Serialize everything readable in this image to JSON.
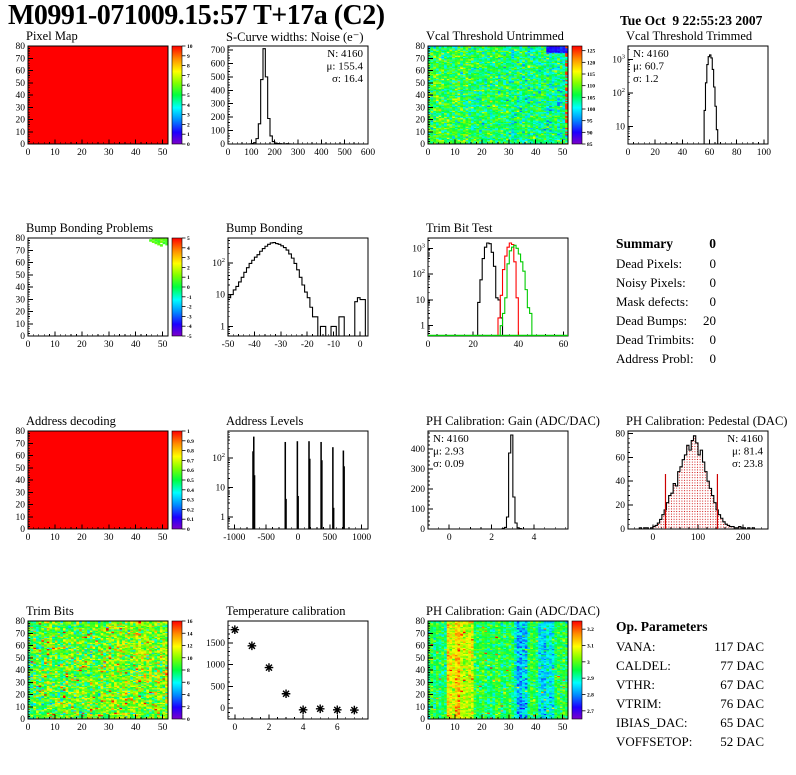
{
  "header": {
    "title": "M0991-071009.15:57 T+17a (C2)",
    "timestamp": "Tue Oct  9 22:55:23 2007"
  },
  "summary": {
    "heading": "Summary",
    "heading_value": "0",
    "rows": [
      {
        "label": "Dead Pixels:",
        "value": "0"
      },
      {
        "label": "Noisy Pixels:",
        "value": "0"
      },
      {
        "label": "Mask defects:",
        "value": "0"
      },
      {
        "label": "Dead Bumps:",
        "value": "20"
      },
      {
        "label": "Dead Trimbits:",
        "value": "0"
      },
      {
        "label": "Address Probl:",
        "value": "0"
      }
    ]
  },
  "op_parameters": {
    "heading": "Op. Parameters",
    "rows": [
      {
        "label": "VANA:",
        "value": "117 DAC"
      },
      {
        "label": "CALDEL:",
        "value": "77 DAC"
      },
      {
        "label": "VTHR:",
        "value": "67 DAC"
      },
      {
        "label": "VTRIM:",
        "value": "76 DAC"
      },
      {
        "label": "IBIAS_DAC:",
        "value": "65 DAC"
      },
      {
        "label": "VOFFSETOP:",
        "value": "52 DAC"
      }
    ]
  },
  "colors": {
    "accent_red": "#ff0000",
    "accent_green": "#00cc00",
    "stats_red": "#cc0000",
    "black": "#000000"
  },
  "chart_data": [
    {
      "id": "pixel-map",
      "title": "Pixel Map",
      "type": "heatmap",
      "xlim": [
        0,
        52
      ],
      "ylim": [
        0,
        80
      ],
      "x_ticks": [
        0,
        10,
        20,
        30,
        40,
        50
      ],
      "y_ticks": [
        0,
        10,
        20,
        30,
        40,
        50,
        60,
        70,
        80
      ],
      "heatmap": {
        "mode": "solid",
        "value": 10,
        "seed": 1
      },
      "colorbar": {
        "min": 0,
        "max": 10,
        "ticks": [
          0,
          1,
          2,
          3,
          4,
          5,
          6,
          7,
          8,
          9,
          10
        ]
      }
    },
    {
      "id": "scurve-noise",
      "title": "S-Curve widths: Noise (e⁻)",
      "type": "hist",
      "yscale": "lin",
      "xlim": [
        0,
        600
      ],
      "x_ticks": [
        0,
        100,
        200,
        300,
        400,
        500,
        600
      ],
      "ylim": [
        0,
        730
      ],
      "y_ticks": [
        0,
        100,
        200,
        300,
        400,
        500,
        600,
        700
      ],
      "series": [
        {
          "color": "#000000",
          "bin_start": 0,
          "bin_width": 10,
          "counts": [
            0,
            0,
            0,
            0,
            0,
            0,
            0,
            0,
            0,
            1,
            3,
            10,
            40,
            150,
            480,
            710,
            500,
            190,
            60,
            18,
            7,
            3,
            2,
            1,
            1,
            2,
            1
          ]
        }
      ],
      "stats": {
        "pos": "tr",
        "lines": [
          {
            "text": "N: 4160",
            "color": "#000000"
          },
          {
            "text": "μ: 155.4",
            "color": "#000000"
          },
          {
            "text": "σ: 16.4",
            "color": "#000000"
          }
        ]
      }
    },
    {
      "id": "vcal-threshold-untrimmed",
      "title": "Vcal Threshold Untrimmed",
      "type": "heatmap",
      "xlim": [
        0,
        52
      ],
      "ylim": [
        0,
        80
      ],
      "x_ticks": [
        0,
        10,
        20,
        30,
        40,
        50
      ],
      "y_ticks": [
        0,
        10,
        20,
        30,
        40,
        50,
        60,
        70,
        80
      ],
      "heatmap": {
        "mode": "noise",
        "seed": 11,
        "mean": 105.5,
        "sigma": 4.2,
        "col_slope": -0.07,
        "col_jitter": 1.2,
        "patches": [
          {
            "x0": 44,
            "x1": 52,
            "y0": 75,
            "y1": 80,
            "value": 91,
            "jitter": 2
          }
        ],
        "edge": {
          "col": 51,
          "p": 0.45,
          "value": 125
        }
      },
      "colorbar": {
        "min": 85,
        "max": 127,
        "ticks": [
          85,
          90,
          95,
          100,
          105,
          110,
          115,
          120,
          125
        ]
      }
    },
    {
      "id": "vcal-threshold-trimmed",
      "title": "Vcal Threshold Trimmed",
      "type": "hist",
      "yscale": "log",
      "xlim": [
        0,
        103
      ],
      "x_ticks": [
        0,
        20,
        40,
        60,
        80,
        100
      ],
      "ylog": {
        "min": 3,
        "max": 2500,
        "decades": [
          10,
          100,
          1000
        ]
      },
      "series": [
        {
          "color": "#000000",
          "bin_start": 55,
          "bin_width": 1,
          "counts": [
            3,
            30,
            200,
            700,
            1200,
            1350,
            1100,
            500,
            150,
            40,
            8
          ]
        }
      ],
      "stats": {
        "pos": "tl",
        "lines": [
          {
            "text": "N: 4160",
            "color": "#000000"
          },
          {
            "text": "μ: 60.7",
            "color": "#000000"
          },
          {
            "text": "σ:  1.2",
            "color": "#000000"
          }
        ]
      }
    },
    {
      "id": "bump-bonding-problems",
      "title": "Bump Bonding Problems",
      "type": "heatmap",
      "xlim": [
        0,
        52
      ],
      "ylim": [
        0,
        80
      ],
      "x_ticks": [
        0,
        10,
        20,
        30,
        40,
        50
      ],
      "y_ticks": [
        0,
        10,
        20,
        30,
        40,
        50,
        60,
        70,
        80
      ],
      "heatmap": {
        "mode": "sparse",
        "seed": 5,
        "dots": [
          [
            46,
            79,
            0.8
          ],
          [
            47,
            79,
            1.2
          ],
          [
            48,
            79,
            0.6
          ],
          [
            49,
            79,
            1.0
          ],
          [
            50,
            79,
            0.9
          ],
          [
            51,
            79,
            1.1
          ],
          [
            45,
            78,
            0.7
          ],
          [
            47,
            78,
            0.5
          ],
          [
            48,
            78,
            1.0
          ],
          [
            50,
            78,
            0.8
          ],
          [
            51,
            78,
            0.6
          ],
          [
            46,
            77,
            0.9
          ],
          [
            48,
            77,
            0.4
          ],
          [
            49,
            77,
            1.1
          ],
          [
            51,
            77,
            0.7
          ],
          [
            47,
            76,
            0.8
          ],
          [
            50,
            76,
            0.5
          ],
          [
            48,
            75,
            0.9
          ],
          [
            51,
            75,
            0.6
          ],
          [
            49,
            74,
            0.8
          ]
        ]
      },
      "colorbar": {
        "min": -5,
        "max": 5,
        "ticks": [
          -5,
          -4,
          -3,
          -2,
          -1,
          0,
          1,
          2,
          3,
          4,
          5
        ]
      }
    },
    {
      "id": "bump-bonding",
      "title": "Bump Bonding",
      "type": "hist",
      "yscale": "log",
      "xlim": [
        -50,
        3
      ],
      "x_ticks": [
        -50,
        -40,
        -30,
        -20,
        -10,
        0
      ],
      "ylog": {
        "min": 0.5,
        "max": 600,
        "decades": [
          1,
          10,
          100
        ]
      },
      "series": [
        {
          "color": "#000000",
          "bin_start": -50,
          "bin_width": 1,
          "counts": [
            8,
            10,
            14,
            18,
            25,
            35,
            50,
            70,
            95,
            120,
            150,
            180,
            230,
            280,
            330,
            380,
            420,
            430,
            400,
            380,
            340,
            300,
            250,
            190,
            140,
            95,
            60,
            35,
            20,
            12,
            8,
            4,
            2,
            2,
            0,
            1,
            1,
            0,
            0,
            1,
            1,
            0,
            2,
            2,
            0,
            0,
            0,
            0,
            6,
            8,
            7,
            7,
            0
          ]
        }
      ]
    },
    {
      "id": "trim-bit-test",
      "title": "Trim Bit Test",
      "type": "hist",
      "yscale": "log",
      "xlim": [
        0,
        62
      ],
      "x_ticks": [
        0,
        20,
        40,
        60
      ],
      "ylog": {
        "min": 0.4,
        "max": 2500,
        "decades": [
          1,
          10,
          100,
          1000
        ]
      },
      "series": [
        {
          "color": "#000000",
          "bin_start": 22,
          "bin_width": 1,
          "counts": [
            8,
            60,
            400,
            1100,
            1600,
            1500,
            700,
            200,
            12,
            10,
            2
          ]
        },
        {
          "color": "#ff0000",
          "bin_start": 31,
          "bin_width": 1,
          "counts": [
            2,
            15,
            150,
            500,
            1100,
            1600,
            1400,
            300,
            12
          ]
        },
        {
          "color": "#00cc00",
          "bin_start": 32,
          "bin_width": 1,
          "counts": [
            1,
            3,
            12,
            250,
            800,
            1100,
            1300,
            1000,
            600,
            300,
            130,
            25,
            5,
            3
          ]
        }
      ],
      "baseline_color": "#00cc00"
    },
    {
      "id": "address-decoding",
      "title": "Address decoding",
      "type": "heatmap",
      "xlim": [
        0,
        52
      ],
      "ylim": [
        0,
        80
      ],
      "x_ticks": [
        0,
        10,
        20,
        30,
        40,
        50
      ],
      "y_ticks": [
        0,
        10,
        20,
        30,
        40,
        50,
        60,
        70,
        80
      ],
      "heatmap": {
        "mode": "solid",
        "value": 1,
        "seed": 2
      },
      "colorbar": {
        "min": 0,
        "max": 1,
        "ticks": [
          0,
          0.1,
          0.2,
          0.3,
          0.4,
          0.5,
          0.6,
          0.7,
          0.8,
          0.9,
          1
        ]
      }
    },
    {
      "id": "address-levels",
      "title": "Address Levels",
      "type": "hist",
      "yscale": "log",
      "xlim": [
        -1100,
        1100
      ],
      "x_ticks": [
        -1000,
        -500,
        0,
        500,
        1000
      ],
      "ylog": {
        "min": 0.4,
        "max": 800,
        "decades": [
          1,
          10,
          100
        ]
      },
      "series": [
        {
          "color": "#000000",
          "bars": [
            [
              -712,
              10,
              160
            ],
            [
              -700,
              10,
              500
            ],
            [
              -688,
              10,
              25
            ],
            [
              -205,
              10,
              330
            ],
            [
              -193,
              10,
              4
            ],
            [
              -15,
              10,
              350
            ],
            [
              -3,
              10,
              5
            ],
            [
              168,
              10,
              350
            ],
            [
              180,
              10,
              90
            ],
            [
              358,
              10,
              330
            ],
            [
              370,
              10,
              80
            ],
            [
              543,
              10,
              220
            ],
            [
              555,
              10,
              2
            ],
            [
              708,
              10,
              170
            ],
            [
              720,
              10,
              50
            ]
          ]
        }
      ]
    },
    {
      "id": "ph-calibration-gain-hist",
      "title": "PH Calibration: Gain (ADC/DAC)",
      "type": "hist",
      "yscale": "lin",
      "xlim": [
        -1,
        5.6
      ],
      "x_ticks": [
        0,
        2,
        4
      ],
      "x_minor": 0.5,
      "ylim": [
        0,
        490
      ],
      "y_ticks": [
        0,
        100,
        200,
        300,
        400
      ],
      "series": [
        {
          "color": "#000000",
          "bin_start": 2.5,
          "bin_width": 0.1,
          "counts": [
            2,
            8,
            60,
            380,
            470,
            160,
            30,
            6,
            2
          ]
        }
      ],
      "stats": {
        "pos": "tl",
        "lines": [
          {
            "text": "N: 4160",
            "color": "#000000"
          },
          {
            "text": "μ: 2.93",
            "color": "#000000"
          },
          {
            "text": "σ: 0.09",
            "color": "#000000"
          }
        ]
      }
    },
    {
      "id": "ph-calibration-pedestal",
      "title": "PH Calibration: Pedestal (DAC)",
      "type": "hist",
      "yscale": "lin",
      "xlim": [
        -55,
        255
      ],
      "x_ticks": [
        0,
        100,
        200
      ],
      "ylim": [
        0,
        82
      ],
      "y_ticks": [
        0,
        20,
        40,
        60,
        80
      ],
      "series": [
        {
          "color": "#000000",
          "fill": "dots",
          "bin_start": -30,
          "bin_width": 5,
          "counts": [
            1,
            0,
            1,
            1,
            0,
            1,
            2,
            3,
            5,
            8,
            12,
            16,
            22,
            28,
            30,
            38,
            36,
            48,
            52,
            58,
            62,
            70,
            66,
            74,
            78,
            72,
            62,
            66,
            56,
            48,
            40,
            34,
            28,
            22,
            16,
            12,
            9,
            6,
            4,
            3,
            2,
            2,
            1,
            1,
            2,
            1,
            1,
            0,
            1,
            0,
            1,
            0
          ]
        }
      ],
      "vlines": [
        {
          "x": 28,
          "y": 46,
          "color": "#cc0000"
        },
        {
          "x": 143,
          "y": 46,
          "color": "#cc0000"
        }
      ],
      "stats": {
        "pos": "tr",
        "lines": [
          {
            "text": "N: 4160",
            "color": "#000000"
          },
          {
            "text": "μ: 81.4",
            "color": "#cc0000"
          },
          {
            "text": "σ: 23.8",
            "color": "#cc0000"
          }
        ]
      }
    },
    {
      "id": "trim-bits",
      "title": "Trim Bits",
      "type": "heatmap",
      "xlim": [
        0,
        52
      ],
      "ylim": [
        0,
        80
      ],
      "x_ticks": [
        0,
        10,
        20,
        30,
        40,
        50
      ],
      "y_ticks": [
        0,
        10,
        20,
        30,
        40,
        50,
        60,
        70,
        80
      ],
      "heatmap": {
        "mode": "noise",
        "seed": 23,
        "mean": 9.3,
        "sigma": 1.9,
        "col_slope": 0.02,
        "col_jitter": 0.5,
        "speckle": {
          "p": 0.05,
          "add": 4.5
        }
      },
      "colorbar": {
        "min": 0,
        "max": 16,
        "ticks": [
          0,
          2,
          4,
          6,
          8,
          10,
          12,
          14,
          16
        ]
      }
    },
    {
      "id": "temperature-calibration",
      "title": "Temperature calibration",
      "type": "scatter",
      "xlim": [
        -0.4,
        7.8
      ],
      "x_ticks": [
        0,
        2,
        4,
        6
      ],
      "x_minor": 0.5,
      "ylim": [
        -250,
        2000
      ],
      "y_ticks": [
        0,
        500,
        1000,
        1500
      ],
      "points": [
        [
          0,
          1800
        ],
        [
          1,
          1430
        ],
        [
          2,
          930
        ],
        [
          3,
          330
        ],
        [
          4,
          -40
        ],
        [
          5,
          -15
        ],
        [
          6,
          -40
        ],
        [
          7,
          -45
        ]
      ]
    },
    {
      "id": "ph-calibration-gain-map",
      "title": "PH Calibration: Gain (ADC/DAC)",
      "type": "heatmap",
      "xlim": [
        0,
        52
      ],
      "ylim": [
        0,
        80
      ],
      "x_ticks": [
        0,
        10,
        20,
        30,
        40,
        50
      ],
      "y_ticks": [
        0,
        10,
        20,
        30,
        40,
        50,
        60,
        70,
        80
      ],
      "heatmap": {
        "mode": "noise",
        "seed": 37,
        "mean": 2.95,
        "sigma": 0.045,
        "col_jitter": 0.03,
        "bands": [
          {
            "x0": 7,
            "x1": 17,
            "delta": 0.12
          },
          {
            "x0": 32,
            "x1": 37,
            "delta": -0.1
          },
          {
            "x0": 41,
            "x1": 47,
            "delta": -0.09
          }
        ],
        "speckle": {
          "p": 0.02,
          "add": 0.2
        }
      },
      "colorbar": {
        "min": 2.65,
        "max": 3.25,
        "ticks": [
          2.7,
          2.8,
          2.9,
          3,
          3.1,
          3.2
        ]
      }
    }
  ]
}
